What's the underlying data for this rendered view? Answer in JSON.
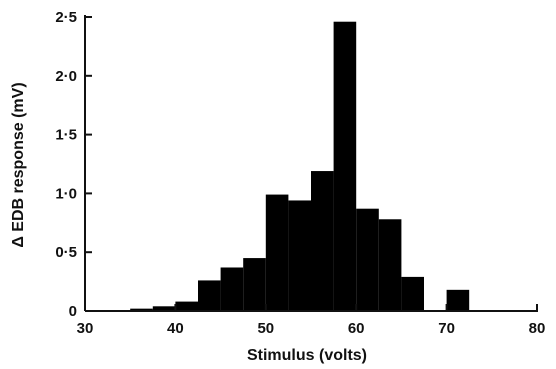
{
  "chart_data": {
    "type": "bar",
    "subtype": "histogram",
    "title": "",
    "xlabel": "Stimulus (volts)",
    "ylabel": "Δ EDB response (mV)",
    "xlim": [
      30,
      80
    ],
    "ylim": [
      0,
      2.5
    ],
    "xticks": [
      30,
      40,
      50,
      60,
      70,
      80
    ],
    "xtick_labels": [
      "30",
      "40",
      "50",
      "60",
      "70",
      "80"
    ],
    "yticks": [
      0,
      0.5,
      1.0,
      1.5,
      2.0,
      2.5
    ],
    "ytick_labels": [
      "0",
      "0·5",
      "1·0",
      "1·5",
      "2·0",
      "2·5"
    ],
    "grid": false,
    "legend": "none",
    "bar_color": "#000000",
    "bin_width": 2.5,
    "bins": [
      {
        "x0": 35.0,
        "x1": 37.5,
        "value": 0.02
      },
      {
        "x0": 37.5,
        "x1": 40.0,
        "value": 0.04
      },
      {
        "x0": 40.0,
        "x1": 42.5,
        "value": 0.08
      },
      {
        "x0": 42.5,
        "x1": 45.0,
        "value": 0.26
      },
      {
        "x0": 45.0,
        "x1": 47.5,
        "value": 0.37
      },
      {
        "x0": 47.5,
        "x1": 50.0,
        "value": 0.45
      },
      {
        "x0": 50.0,
        "x1": 52.5,
        "value": 0.99
      },
      {
        "x0": 52.5,
        "x1": 55.0,
        "value": 0.94
      },
      {
        "x0": 55.0,
        "x1": 57.5,
        "value": 1.19
      },
      {
        "x0": 57.5,
        "x1": 60.0,
        "value": 2.46
      },
      {
        "x0": 60.0,
        "x1": 62.5,
        "value": 0.87
      },
      {
        "x0": 62.5,
        "x1": 65.0,
        "value": 0.78
      },
      {
        "x0": 65.0,
        "x1": 67.5,
        "value": 0.29
      },
      {
        "x0": 70.0,
        "x1": 72.5,
        "value": 0.18
      }
    ]
  }
}
